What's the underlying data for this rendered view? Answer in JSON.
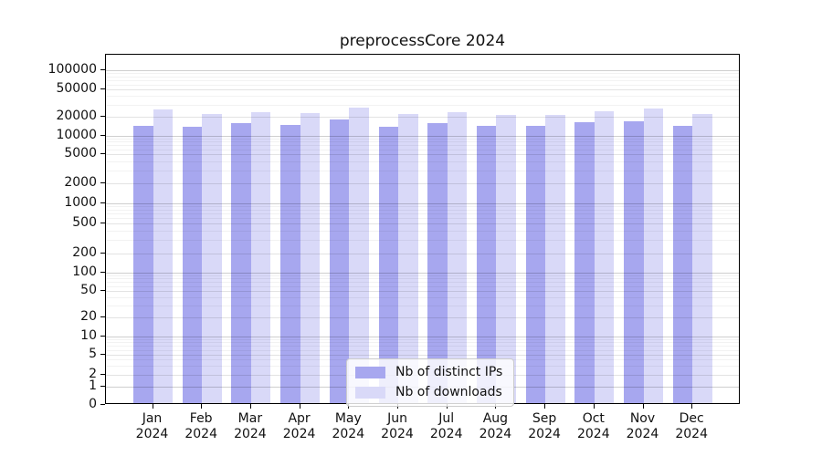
{
  "chart_data": {
    "type": "bar",
    "title": "preprocessCore 2024",
    "categories": [
      "Jan 2024",
      "Feb 2024",
      "Mar 2024",
      "Apr 2024",
      "May 2024",
      "Jun 2024",
      "Jul 2024",
      "Aug 2024",
      "Sep 2024",
      "Oct 2024",
      "Nov 2024",
      "Dec 2024"
    ],
    "months": [
      "Jan",
      "Feb",
      "Mar",
      "Apr",
      "May",
      "Jun",
      "Jul",
      "Aug",
      "Sep",
      "Oct",
      "Nov",
      "Dec"
    ],
    "year": "2024",
    "series": [
      {
        "name": "Nb of distinct IPs",
        "color": "#a7a7ef",
        "values": [
          13300,
          13100,
          14900,
          13900,
          17000,
          13100,
          14900,
          13300,
          13400,
          15500,
          15900,
          13500
        ]
      },
      {
        "name": "Nb of downloads",
        "color": "#d9d9f8",
        "values": [
          23900,
          20700,
          21900,
          21300,
          25300,
          20500,
          21900,
          19900,
          20200,
          22400,
          24800,
          20600
        ]
      }
    ],
    "xlabel": "",
    "ylabel": "",
    "yscale": "log",
    "yticks": [
      0,
      1,
      2,
      5,
      10,
      20,
      50,
      100,
      200,
      500,
      1000,
      2000,
      5000,
      10000,
      20000,
      50000,
      100000
    ],
    "ylim": [
      0,
      175000
    ],
    "grid": true,
    "legend_position": "bottom-center"
  },
  "legend": {
    "items": [
      "Nb of distinct IPs",
      "Nb of downloads"
    ]
  },
  "colors": {
    "bar_distinct_ips": "#a7a7ef",
    "bar_downloads": "#d9d9f8",
    "axis": "#000000",
    "text": "#111111",
    "background": "#ffffff",
    "legend_border": "#cccccc"
  }
}
